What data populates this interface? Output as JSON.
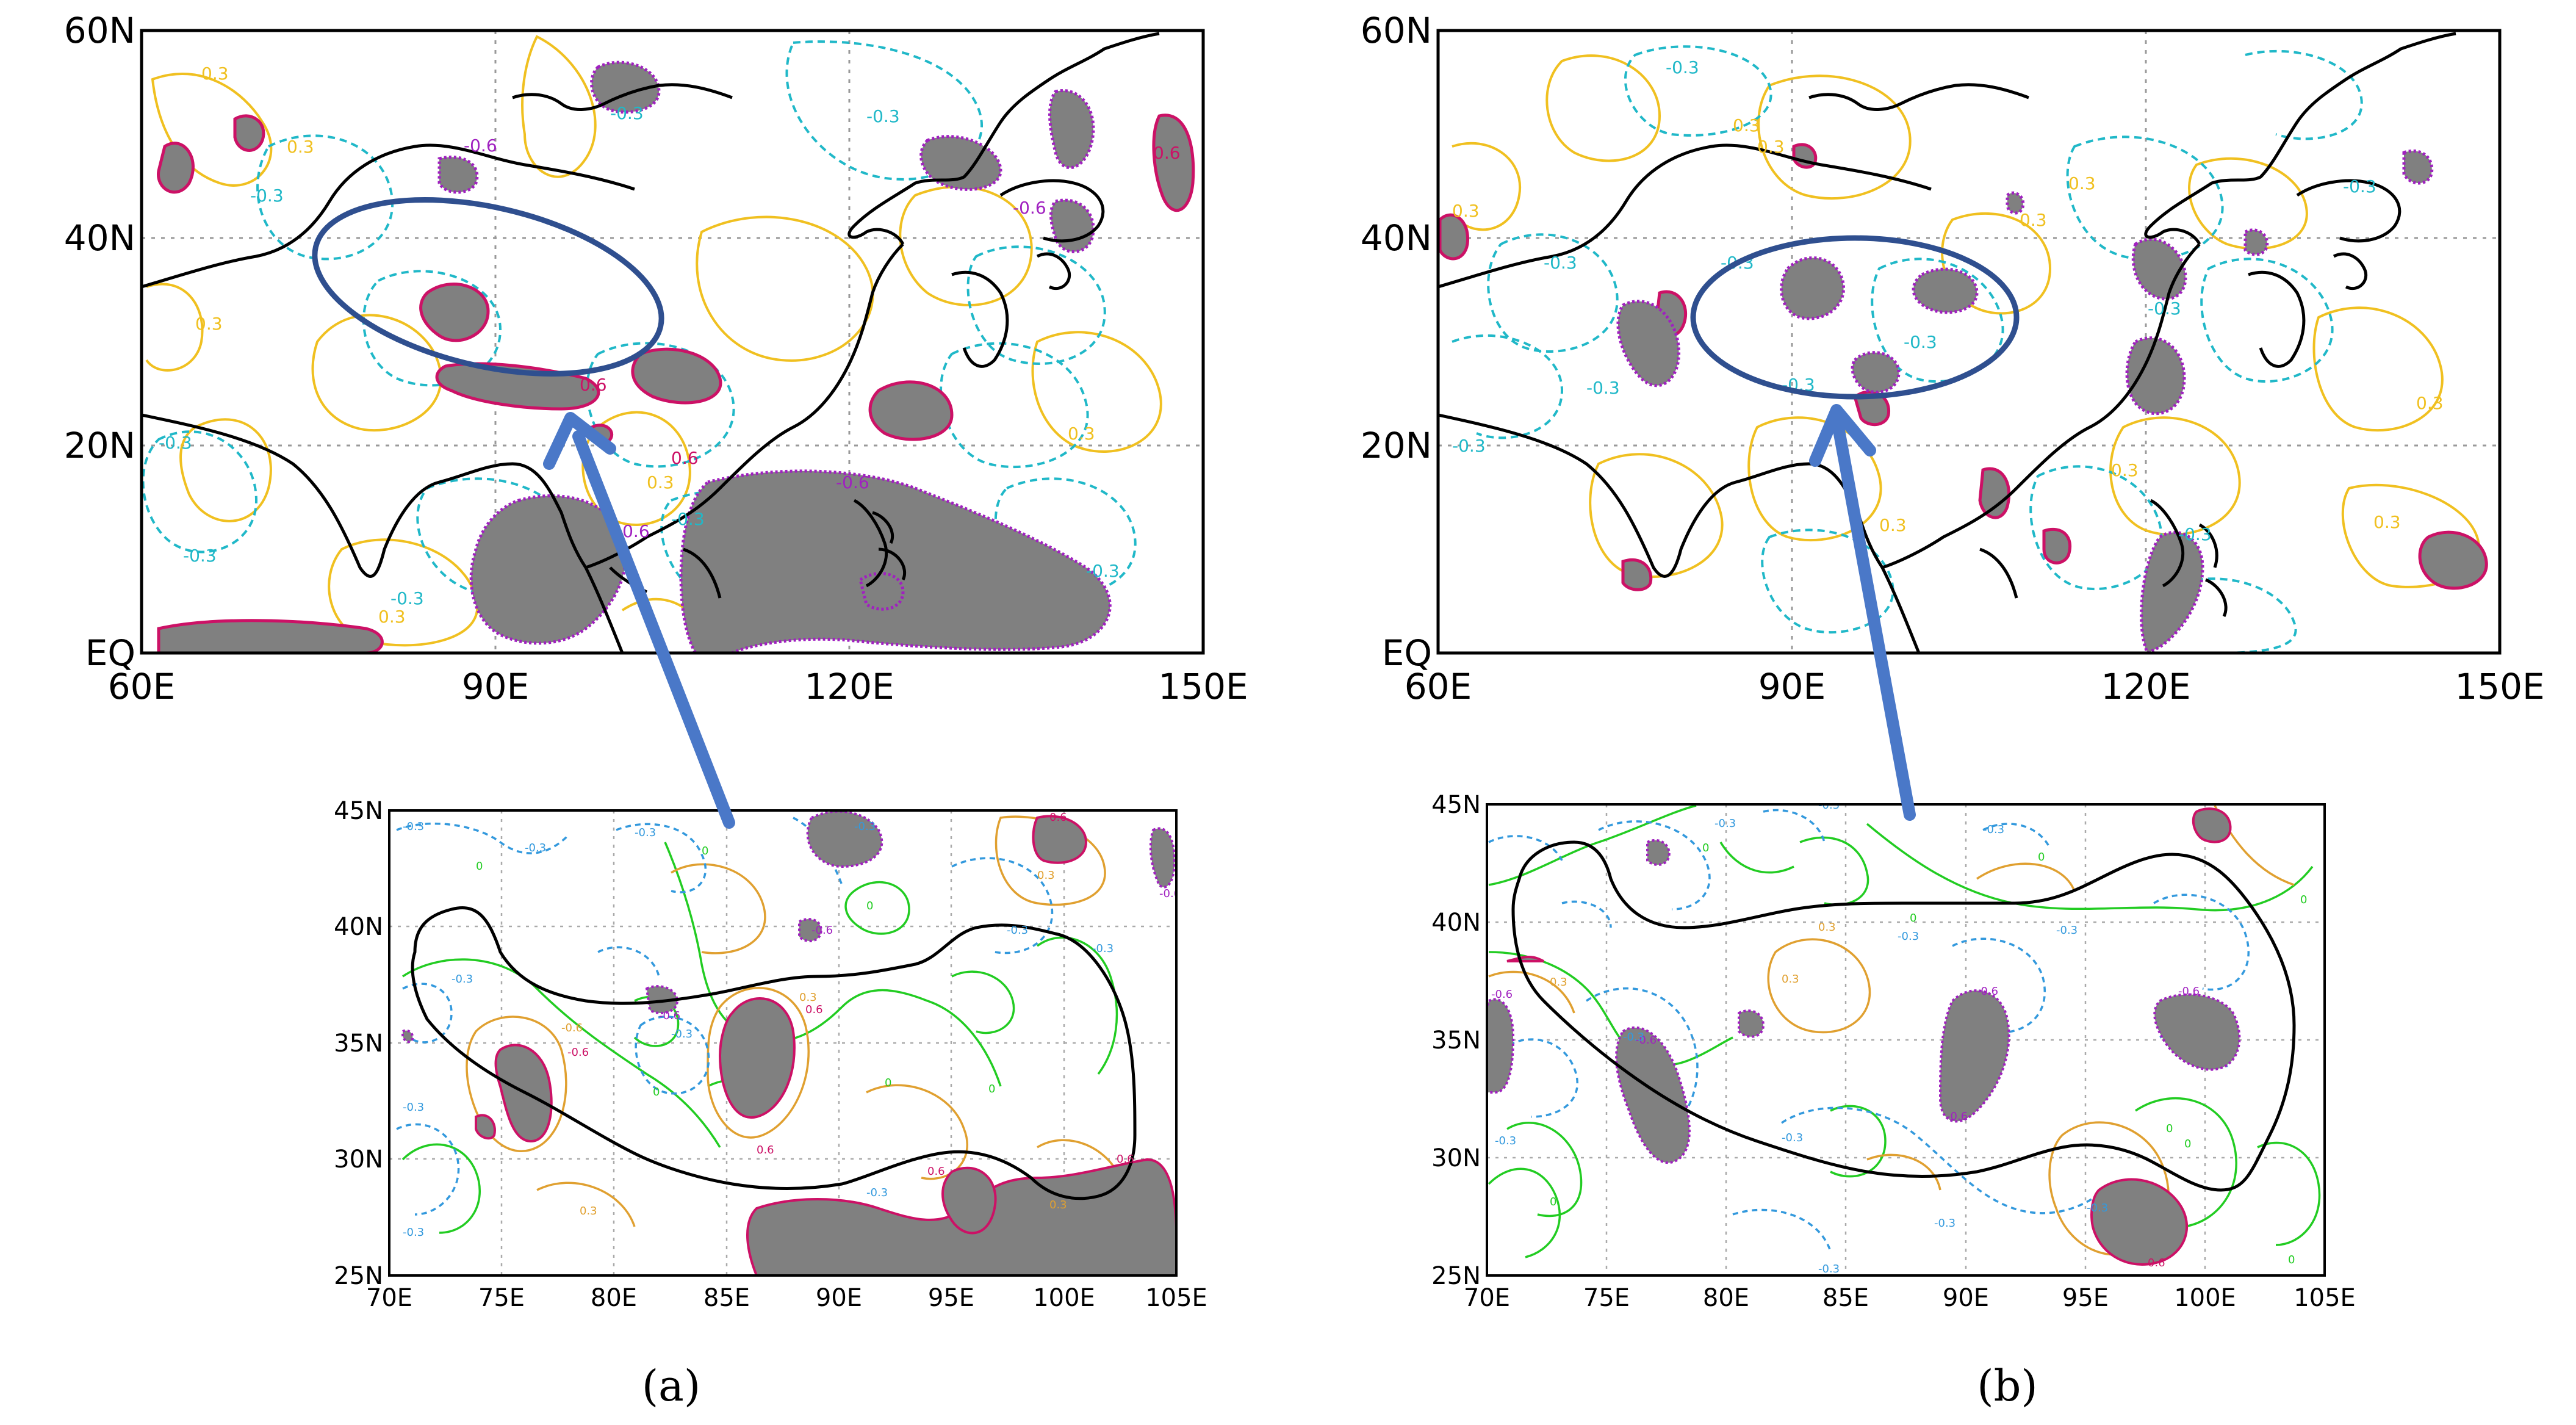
{
  "panels": [
    {
      "id": "a",
      "label": "(a)",
      "top_map": {
        "lat_ticks": [
          "60N",
          "40N",
          "20N",
          "EQ"
        ],
        "lon_ticks": [
          "60E",
          "90E",
          "120E",
          "150E"
        ],
        "lat_range": [
          0,
          60
        ],
        "lon_range": [
          60,
          150
        ],
        "contour_labels": [
          "0.3",
          "-0.3",
          "-0.6",
          "0.6"
        ]
      },
      "inset_map": {
        "lat_ticks": [
          "45N",
          "40N",
          "35N",
          "30N",
          "25N"
        ],
        "lon_ticks": [
          "70E",
          "75E",
          "80E",
          "85E",
          "90E",
          "95E",
          "100E",
          "105E"
        ],
        "lat_range": [
          25,
          45
        ],
        "lon_range": [
          70,
          105
        ],
        "contour_labels": [
          "-0.3",
          "0",
          "0.3",
          "-0.6",
          "0.6"
        ]
      }
    },
    {
      "id": "b",
      "label": "(b)",
      "top_map": {
        "lat_ticks": [
          "60N",
          "40N",
          "20N",
          "EQ"
        ],
        "lon_ticks": [
          "60E",
          "90E",
          "120E",
          "150E"
        ],
        "lat_range": [
          0,
          60
        ],
        "lon_range": [
          60,
          150
        ],
        "contour_labels": [
          "0.3",
          "-0.3",
          "-0.6",
          "0.6"
        ]
      },
      "inset_map": {
        "lat_ticks": [
          "45N",
          "40N",
          "35N",
          "30N",
          "25N"
        ],
        "lon_ticks": [
          "70E",
          "75E",
          "80E",
          "85E",
          "90E",
          "95E",
          "100E",
          "105E"
        ],
        "lat_range": [
          25,
          45
        ],
        "lon_range": [
          70,
          105
        ],
        "contour_labels": [
          "-0.3",
          "0",
          "0.3",
          "-0.6",
          "0.6"
        ]
      }
    }
  ],
  "colors": {
    "shading": "#808080",
    "positive_outline": "#cc1166",
    "negative_outline": "#a020c0",
    "positive_contour": "#f0c020",
    "negative_contour": "#20b8c8",
    "zero_contour": "#22cc22",
    "inset_positive": "#e0a030",
    "inset_negative": "#3399dd",
    "coastline": "#000000",
    "highlight": "#2f4f8f",
    "arrow": "#4a78c8"
  }
}
